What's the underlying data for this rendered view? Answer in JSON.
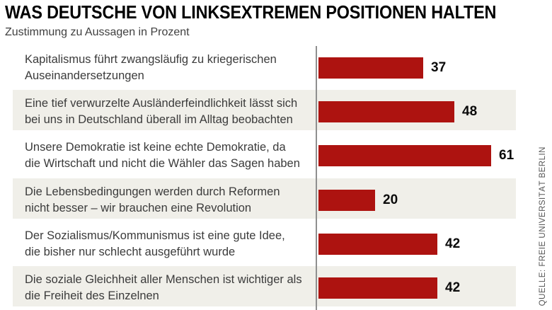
{
  "header": {
    "title": "WAS DEUTSCHE VON LINKSEXTREMEN POSITIONEN HALTEN",
    "subtitle": "Zustimmung zu Aussagen in Prozent"
  },
  "source_note": "QUELLE: FREIE UNIVERSITÄT BERLIN",
  "chart_data": {
    "type": "bar",
    "orientation": "horizontal",
    "title": "WAS DEUTSCHE VON LINKSEXTREMEN POSITIONEN HALTEN",
    "subtitle": "Zustimmung zu Aussagen in Prozent",
    "unit": "Prozent",
    "categories": [
      "Kapitalismus führt zwangsläufig zu kriegerischen\nAuseinandersetzungen",
      "Eine tief verwurzelte Ausländerfeindlichkeit lässt sich\nbei uns in Deutschland überall im Alltag beobachten",
      "Unsere Demokratie ist keine echte Demokratie, da\ndie Wirtschaft und nicht die Wähler das Sagen haben",
      "Die Lebensbedingungen werden durch Reformen\nnicht besser – wir brauchen eine Revolution",
      "Der Sozialismus/Kommunismus ist eine gute Idee,\ndie bisher nur schlecht ausgeführt wurde",
      "Die soziale Gleichheit aller Menschen ist wichtiger als\ndie Freiheit des Einzelnen"
    ],
    "values": [
      37,
      48,
      61,
      20,
      42,
      42
    ],
    "xlim": [
      0,
      70
    ],
    "value_labels": true,
    "grid": false,
    "legend": false,
    "row_striping": "alternate",
    "colors": {
      "bar": "#ad1310",
      "row_alt": "#f0efe9",
      "axis_line": "#8f8f8f",
      "value_text": "#0a0a0a",
      "statement_text": "#3b3b3b"
    },
    "source": "QUELLE: FREIE UNIVERSITÄT BERLIN"
  }
}
